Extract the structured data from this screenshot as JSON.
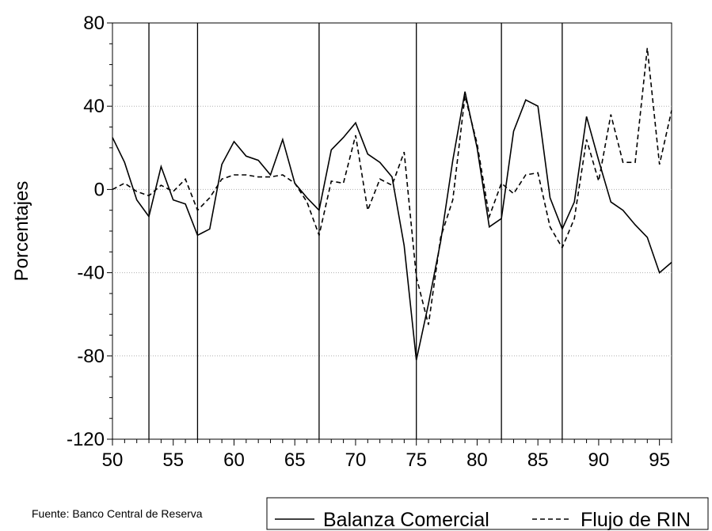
{
  "chart_data": {
    "type": "line",
    "title": "",
    "xlabel": "",
    "ylabel": "Porcentajes",
    "xlim": [
      50,
      96
    ],
    "ylim": [
      -120,
      80
    ],
    "xticks": [
      "50",
      "55",
      "60",
      "65",
      "70",
      "75",
      "80",
      "85",
      "90",
      "95"
    ],
    "yticks": [
      "80",
      "40",
      "0",
      "-40",
      "-80",
      "-120"
    ],
    "grid": "horizontal dotted",
    "vertical_markers": [
      53,
      57,
      67,
      75,
      82,
      87
    ],
    "x": [
      50,
      51,
      52,
      53,
      54,
      55,
      56,
      57,
      58,
      59,
      60,
      61,
      62,
      63,
      64,
      65,
      66,
      67,
      68,
      69,
      70,
      71,
      72,
      73,
      74,
      75,
      76,
      77,
      78,
      79,
      80,
      81,
      82,
      83,
      84,
      85,
      86,
      87,
      88,
      89,
      90,
      91,
      92,
      93,
      94,
      95,
      96
    ],
    "series": [
      {
        "name": "Balanza Comercial",
        "style": "solid",
        "color": "#000000",
        "values": [
          25,
          13,
          -5,
          -13,
          11,
          -5,
          -7,
          -22,
          -19,
          12,
          23,
          16,
          14,
          7,
          24,
          3,
          -4,
          -10,
          19,
          25,
          32,
          17,
          13,
          6,
          -27,
          -82,
          -55,
          -25,
          14,
          47,
          20,
          -18,
          -14,
          28,
          43,
          40,
          -4,
          -19,
          -6,
          35,
          14,
          -6,
          -10,
          -17,
          -23,
          -40,
          -35
        ]
      },
      {
        "name": "Flujo de RIN",
        "style": "dashed",
        "color": "#000000",
        "values": [
          0,
          3,
          -1,
          -3,
          2,
          -1,
          5,
          -10,
          -4,
          5,
          7,
          7,
          6,
          6,
          7,
          3,
          -6,
          -22,
          4,
          3,
          26,
          -10,
          5,
          2,
          18,
          -42,
          -65,
          -23,
          -5,
          45,
          22,
          -13,
          3,
          -2,
          7,
          8,
          -18,
          -28,
          -14,
          24,
          4,
          36,
          13,
          13,
          68,
          12,
          38
        ]
      }
    ],
    "legend": {
      "position": "bottom-right",
      "entries": [
        "Balanza Comercial",
        "Flujo de RIN"
      ]
    },
    "source_note": "Fuente: Banco Central de Reserva"
  }
}
